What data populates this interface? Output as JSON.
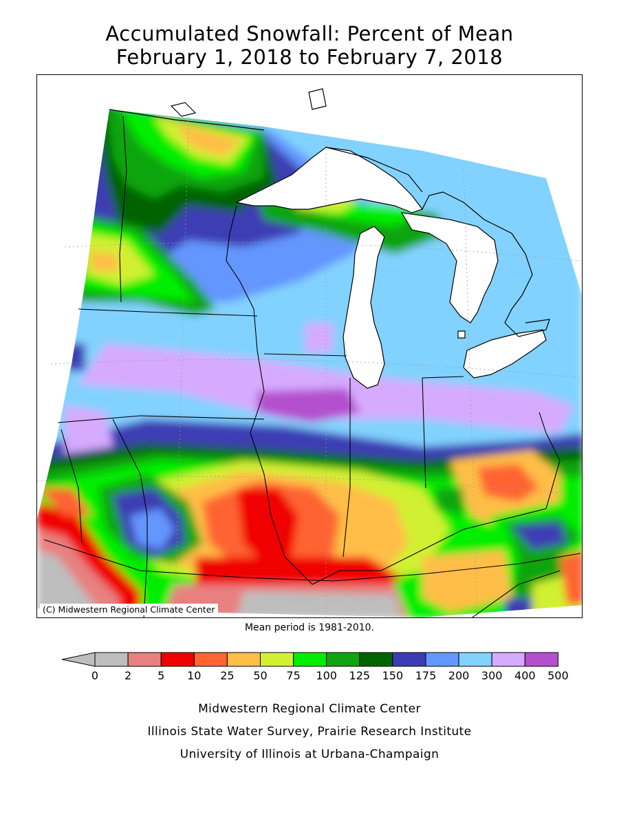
{
  "title": {
    "line1": "Accumulated Snowfall: Percent of Mean",
    "line2": "February 1, 2018 to February 7, 2018"
  },
  "copyright": "(C) Midwestern Regional Climate Center",
  "mean_note": "Mean period is 1981-2010.",
  "legend": {
    "labels": [
      "0",
      "2",
      "5",
      "10",
      "25",
      "50",
      "75",
      "100",
      "125",
      "150",
      "175",
      "200",
      "300",
      "400",
      "500"
    ],
    "colors": [
      "#bebebe",
      "#e88080",
      "#f00000",
      "#ff6432",
      "#ffbe46",
      "#d2f032",
      "#00ee00",
      "#10a510",
      "#006400",
      "#3c3cb4",
      "#6496ff",
      "#82d2ff",
      "#d6aaff",
      "#b450cd"
    ]
  },
  "credits": {
    "line1": "Midwestern Regional Climate Center",
    "line2": "Illinois State Water Survey, Prairie Research Institute",
    "line3": "University of Illinois at Urbana-Champaign"
  },
  "palette": {
    "water": "#ffffff",
    "border": "#000000"
  }
}
